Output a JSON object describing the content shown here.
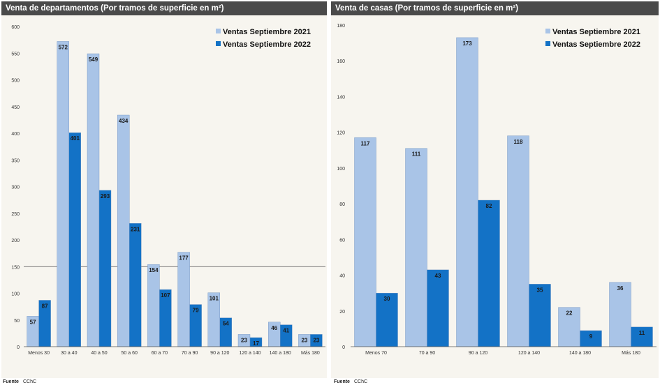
{
  "colors": {
    "series_2021": "#a9c4e7",
    "series_2022": "#1372c6",
    "header_bg": "#4a4a4a",
    "panel_bg": "#f7f5ef"
  },
  "chart_data": [
    {
      "type": "bar",
      "title": "Venta de departamentos (Por tramos de superficie en m²)",
      "categories": [
        "Menos 30",
        "30 a 40",
        "40 a 50",
        "50 a 60",
        "60 a 70",
        "70 a 90",
        "90 a 120",
        "120 a 140",
        "140 a 180",
        "Más 180"
      ],
      "series": [
        {
          "name": "Ventas Septiembre 2021",
          "values": [
            57,
            572,
            549,
            434,
            154,
            177,
            101,
            23,
            46,
            23
          ]
        },
        {
          "name": "Ventas Septiembre 2022",
          "values": [
            87,
            401,
            293,
            231,
            107,
            79,
            54,
            17,
            41,
            23
          ]
        }
      ],
      "ylim": [
        0,
        600
      ],
      "yticks": [
        "0",
        "50",
        "100",
        "150",
        "200",
        "250",
        "300",
        "350",
        "400",
        "450",
        "500",
        "550",
        "600"
      ],
      "reference_line": 150,
      "legend": "top-right",
      "source_label": "Fuente",
      "source_text": "CChC"
    },
    {
      "type": "bar",
      "title": "Venta de casas (Por tramos de superficie en m²)",
      "categories": [
        "Menos 70",
        "70 a 90",
        "90 a 120",
        "120 a 140",
        "140 a 180",
        "Más 180"
      ],
      "series": [
        {
          "name": "Ventas Septiembre 2021",
          "values": [
            117,
            111,
            173,
            118,
            22,
            36
          ]
        },
        {
          "name": "Ventas Septiembre 2022",
          "values": [
            30,
            43,
            82,
            35,
            9,
            11
          ]
        }
      ],
      "ylim": [
        0,
        180
      ],
      "yticks": [
        "0",
        "20",
        "40",
        "60",
        "80",
        "100",
        "120",
        "140",
        "160",
        "180"
      ],
      "legend": "top-right",
      "source_label": "Fuente",
      "source_text": "CChC"
    }
  ]
}
